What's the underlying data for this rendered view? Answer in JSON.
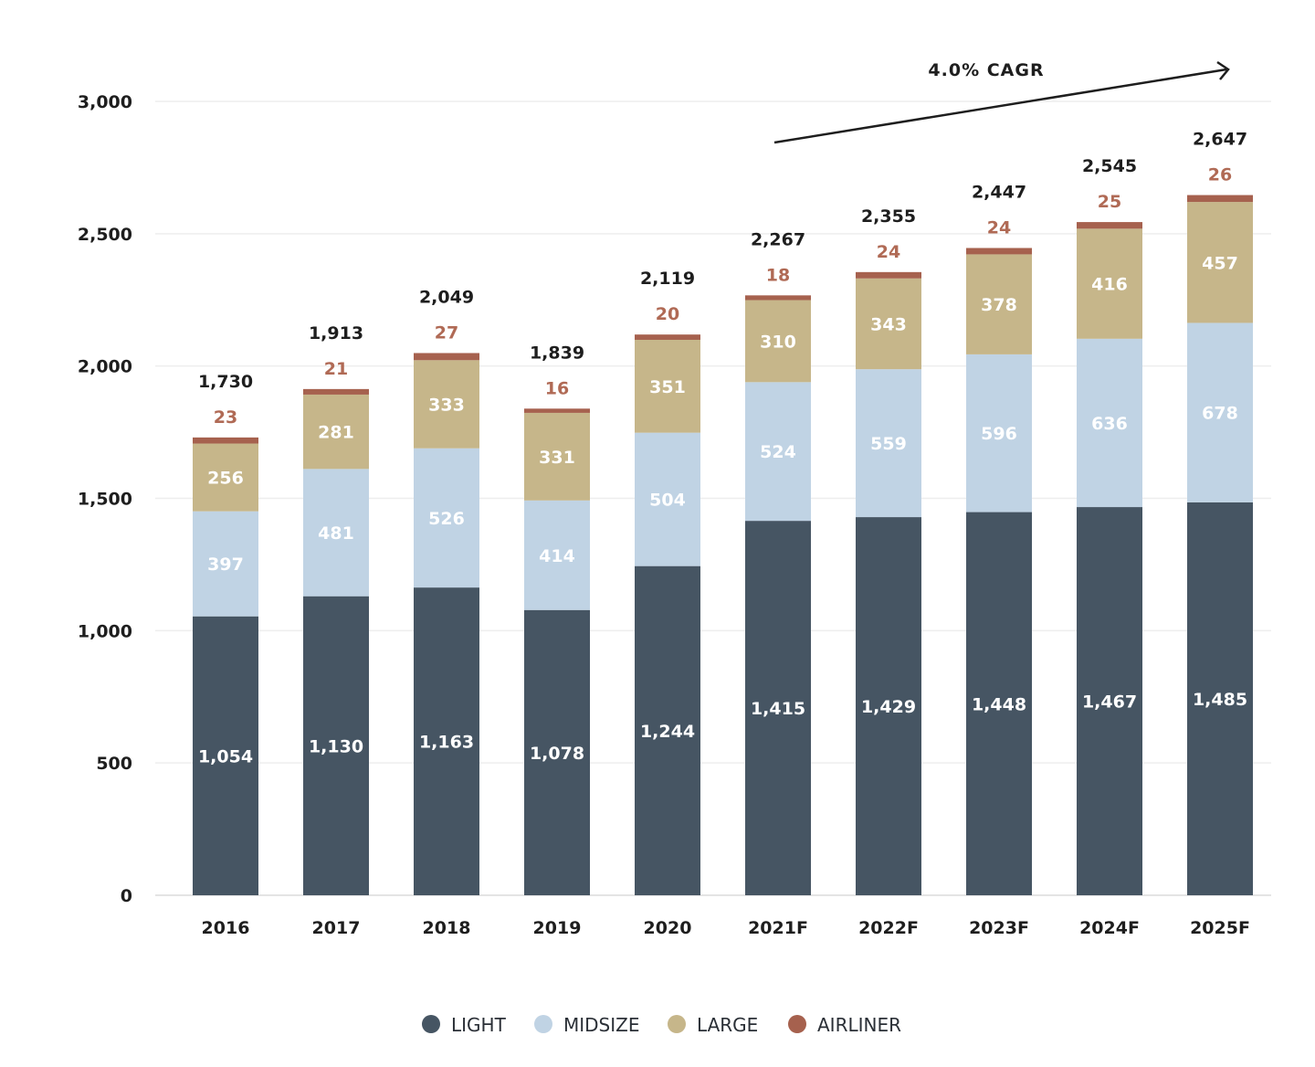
{
  "chart_data": {
    "type": "bar",
    "stacked": true,
    "categories": [
      "2016",
      "2017",
      "2018",
      "2019",
      "2020",
      "2021F",
      "2022F",
      "2023F",
      "2024F",
      "2025F"
    ],
    "series": [
      {
        "name": "LIGHT",
        "color": "#465563",
        "values": [
          1054,
          1130,
          1163,
          1078,
          1244,
          1415,
          1429,
          1448,
          1467,
          1485
        ]
      },
      {
        "name": "MIDSIZE",
        "color": "#c0d3e4",
        "values": [
          397,
          481,
          526,
          414,
          504,
          524,
          559,
          596,
          636,
          678
        ]
      },
      {
        "name": "LARGE",
        "color": "#c6b68a",
        "values": [
          256,
          281,
          333,
          331,
          351,
          310,
          343,
          378,
          416,
          457
        ]
      },
      {
        "name": "AIRLINER",
        "color": "#a6614e",
        "values": [
          23,
          21,
          27,
          16,
          20,
          18,
          24,
          24,
          25,
          26
        ]
      }
    ],
    "totals": [
      "1,730",
      "1,913",
      "2,049",
      "1,839",
      "2,119",
      "2,267",
      "2,355",
      "2,447",
      "2,545",
      "2,647"
    ],
    "ylim": [
      0,
      3000
    ],
    "yticks": [
      "0",
      "500",
      "1,000",
      "1,500",
      "2,000",
      "2,500",
      "3,000"
    ],
    "grid": true,
    "legend_position": "bottom",
    "annotation": "4.0% CAGR"
  }
}
